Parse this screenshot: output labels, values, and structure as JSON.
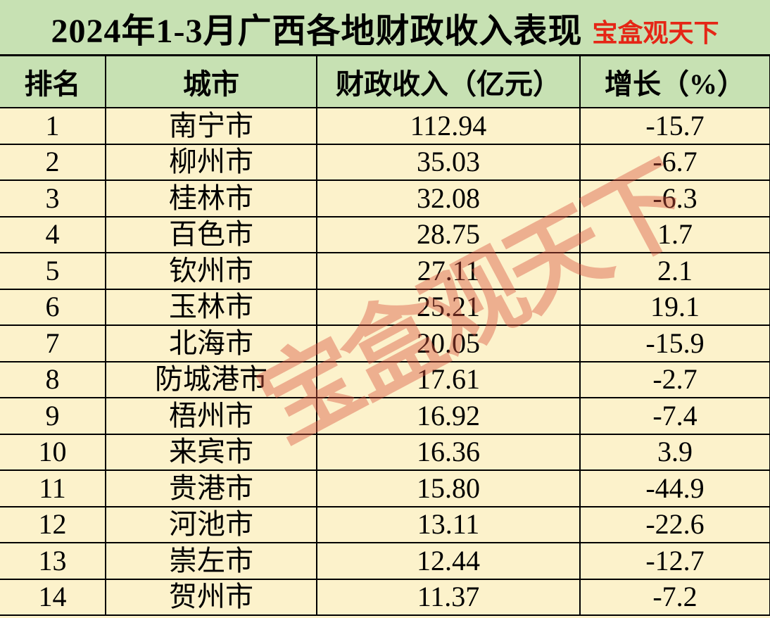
{
  "page": {
    "title_text": "2024年1-3月广西各地财政收入表现",
    "brand_text": "宝盒观天下"
  },
  "watermark": {
    "text": "宝盒观天下"
  },
  "colors": {
    "title_header_bg": "#c7e1b3",
    "row_bg": "#fcf2cb",
    "grid": "#000000",
    "brand_red": "#e52616",
    "watermark": "#d9543e"
  },
  "table": {
    "headers": [
      "排名",
      "城市",
      "财政收入（亿元）",
      "增长（%）"
    ],
    "cell_names": [
      "rank-cell",
      "city-cell",
      "revenue-cell",
      "growth-cell"
    ],
    "rows": [
      [
        "1",
        "南宁市",
        "112.94",
        "-15.7"
      ],
      [
        "2",
        "柳州市",
        "35.03",
        "-6.7"
      ],
      [
        "3",
        "桂林市",
        "32.08",
        "-6.3"
      ],
      [
        "4",
        "百色市",
        "28.75",
        "1.7"
      ],
      [
        "5",
        "钦州市",
        "27.11",
        "2.1"
      ],
      [
        "6",
        "玉林市",
        "25.21",
        "19.1"
      ],
      [
        "7",
        "北海市",
        "20.05",
        "-15.9"
      ],
      [
        "8",
        "防城港市",
        "17.61",
        "-2.7"
      ],
      [
        "9",
        "梧州市",
        "16.92",
        "-7.4"
      ],
      [
        "10",
        "来宾市",
        "16.36",
        "3.9"
      ],
      [
        "11",
        "贵港市",
        "15.80",
        "-44.9"
      ],
      [
        "12",
        "河池市",
        "13.11",
        "-22.6"
      ],
      [
        "13",
        "崇左市",
        "12.44",
        "-12.7"
      ],
      [
        "14",
        "贺州市",
        "11.37",
        "-7.2"
      ]
    ]
  },
  "chart_data": {
    "type": "table",
    "title": "2024年1-3月广西各地财政收入表现",
    "columns": [
      "排名",
      "城市",
      "财政收入（亿元）",
      "增长（%）"
    ],
    "rows": [
      [
        1,
        "南宁市",
        112.94,
        -15.7
      ],
      [
        2,
        "柳州市",
        35.03,
        -6.7
      ],
      [
        3,
        "桂林市",
        32.08,
        -6.3
      ],
      [
        4,
        "百色市",
        28.75,
        1.7
      ],
      [
        5,
        "钦州市",
        27.11,
        2.1
      ],
      [
        6,
        "玉林市",
        25.21,
        19.1
      ],
      [
        7,
        "北海市",
        20.05,
        -15.9
      ],
      [
        8,
        "防城港市",
        17.61,
        -2.7
      ],
      [
        9,
        "梧州市",
        16.92,
        -7.4
      ],
      [
        10,
        "来宾市",
        16.36,
        3.9
      ],
      [
        11,
        "贵港市",
        15.8,
        -44.9
      ],
      [
        12,
        "河池市",
        13.11,
        -22.6
      ],
      [
        13,
        "崇左市",
        12.44,
        -12.7
      ],
      [
        14,
        "贺州市",
        11.37,
        -7.2
      ]
    ]
  }
}
